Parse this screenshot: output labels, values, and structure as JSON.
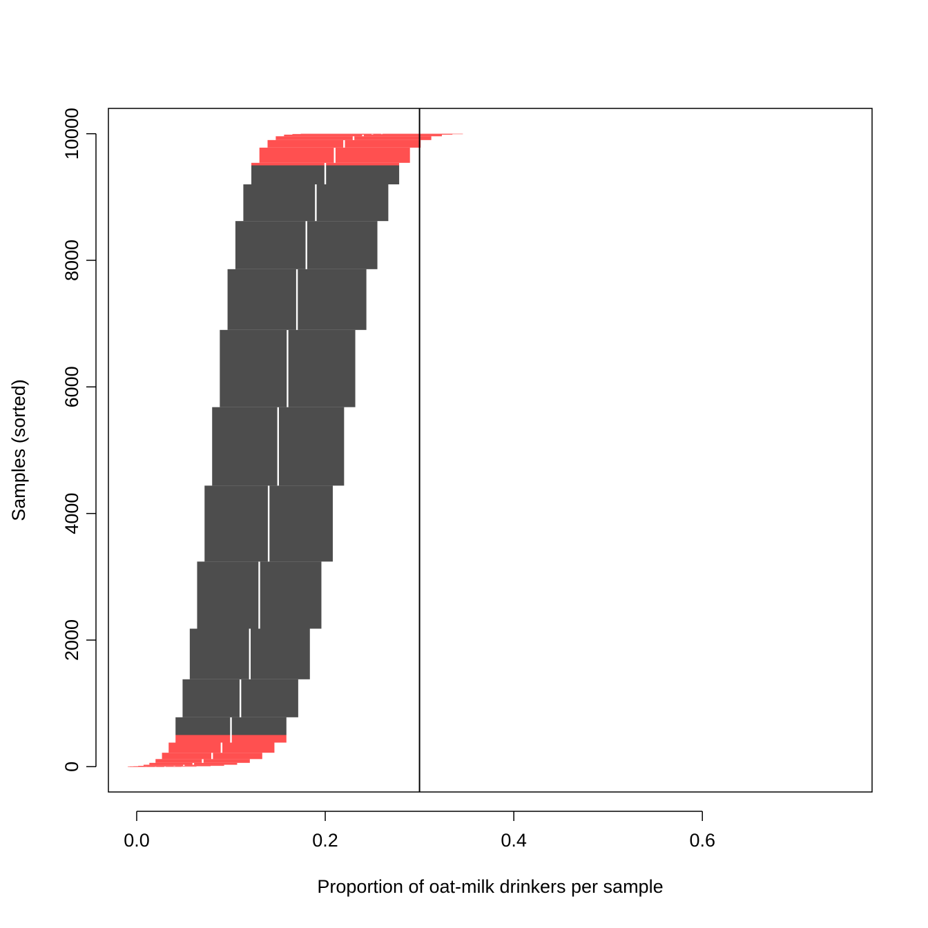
{
  "chart_data": {
    "type": "bar",
    "orientation": "horizontal",
    "title": "",
    "xlabel": "Proportion of oat-milk drinkers per sample",
    "ylabel": "Samples (sorted)",
    "xlim": [
      -0.03,
      0.78
    ],
    "ylim": [
      -400,
      10400
    ],
    "x_ticks": [
      0.0,
      0.2,
      0.4,
      0.6
    ],
    "x_tick_labels": [
      "0.0",
      "0.2",
      "0.4",
      "0.6"
    ],
    "y_ticks": [
      0,
      2000,
      4000,
      6000,
      8000,
      10000
    ],
    "y_tick_labels": [
      "0",
      "2000",
      "4000",
      "6000",
      "8000",
      "10000"
    ],
    "reference_line": {
      "x": 0.3
    },
    "grid": false,
    "sample_size": 100,
    "colors": {
      "inside": "#4d4d4d",
      "tail": "#ff5050",
      "reference": "#000000"
    },
    "series": [
      {
        "description": "sorted sample proportions; each step = one proportion value",
        "steps": [
          {
            "x": 0.0,
            "from": 0,
            "to": 1
          },
          {
            "x": 0.01,
            "from": 1,
            "to": 2
          },
          {
            "x": 0.02,
            "from": 2,
            "to": 3
          },
          {
            "x": 0.03,
            "from": 3,
            "to": 6
          },
          {
            "x": 0.04,
            "from": 6,
            "to": 13
          },
          {
            "x": 0.05,
            "from": 13,
            "to": 30
          },
          {
            "x": 0.06,
            "from": 30,
            "to": 60
          },
          {
            "x": 0.07,
            "from": 60,
            "to": 120
          },
          {
            "x": 0.08,
            "from": 120,
            "to": 220
          },
          {
            "x": 0.09,
            "from": 220,
            "to": 380
          },
          {
            "x": 0.1,
            "from": 380,
            "to": 780
          },
          {
            "x": 0.11,
            "from": 780,
            "to": 1380
          },
          {
            "x": 0.12,
            "from": 1380,
            "to": 2180
          },
          {
            "x": 0.13,
            "from": 2180,
            "to": 3240
          },
          {
            "x": 0.14,
            "from": 3240,
            "to": 4440
          },
          {
            "x": 0.15,
            "from": 4440,
            "to": 5680
          },
          {
            "x": 0.16,
            "from": 5680,
            "to": 6900
          },
          {
            "x": 0.17,
            "from": 6900,
            "to": 7860
          },
          {
            "x": 0.18,
            "from": 7860,
            "to": 8620
          },
          {
            "x": 0.19,
            "from": 8620,
            "to": 9200
          },
          {
            "x": 0.2,
            "from": 9200,
            "to": 9540
          },
          {
            "x": 0.21,
            "from": 9540,
            "to": 9780
          },
          {
            "x": 0.22,
            "from": 9780,
            "to": 9900
          },
          {
            "x": 0.23,
            "from": 9900,
            "to": 9960
          },
          {
            "x": 0.24,
            "from": 9960,
            "to": 9985
          },
          {
            "x": 0.25,
            "from": 9985,
            "to": 9995
          },
          {
            "x": 0.26,
            "from": 9995,
            "to": 10000
          }
        ]
      }
    ]
  }
}
